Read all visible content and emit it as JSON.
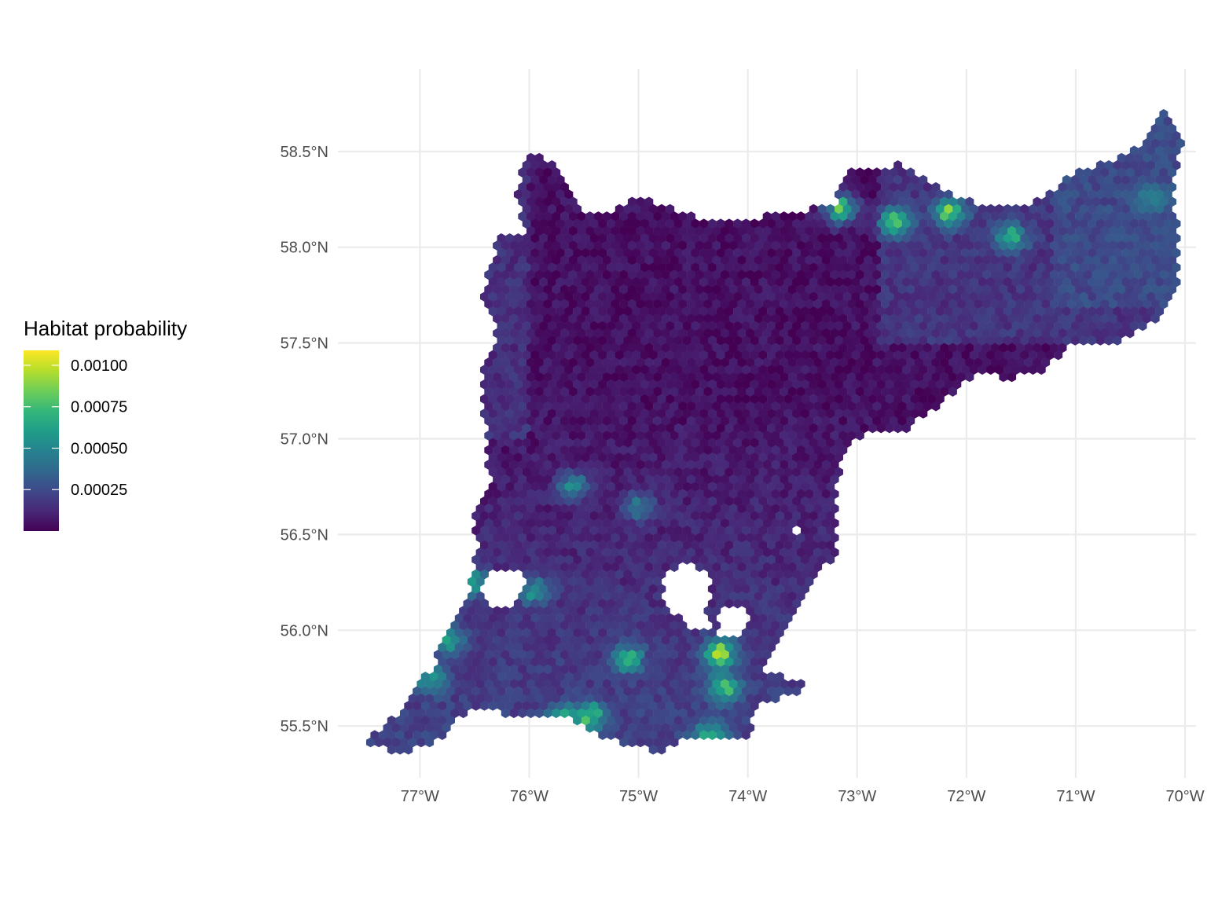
{
  "chart_data": {
    "type": "heatmap",
    "geometry": "hexbin-map",
    "title": "",
    "xlabel": "",
    "ylabel": "",
    "xlim": [
      -77.75,
      -69.9
    ],
    "ylim": [
      55.23,
      58.93
    ],
    "x_ticks": [
      {
        "value": -77,
        "label": "77°W"
      },
      {
        "value": -76,
        "label": "76°W"
      },
      {
        "value": -75,
        "label": "75°W"
      },
      {
        "value": -74,
        "label": "74°W"
      },
      {
        "value": -73,
        "label": "73°W"
      },
      {
        "value": -72,
        "label": "72°W"
      },
      {
        "value": -71,
        "label": "71°W"
      },
      {
        "value": -70,
        "label": "70°W"
      }
    ],
    "y_ticks": [
      {
        "value": 55.5,
        "label": "55.5°N"
      },
      {
        "value": 56.0,
        "label": "56.0°N"
      },
      {
        "value": 56.5,
        "label": "56.5°N"
      },
      {
        "value": 57.0,
        "label": "57.0°N"
      },
      {
        "value": 57.5,
        "label": "57.5°N"
      },
      {
        "value": 58.0,
        "label": "58.0°N"
      },
      {
        "value": 58.5,
        "label": "58.5°N"
      }
    ],
    "grid": true,
    "legend": {
      "title": "Habitat probability",
      "placement": "left",
      "min": 0.0,
      "max": 0.00109,
      "breaks": [
        {
          "value": 0.001,
          "label": "0.00100"
        },
        {
          "value": 0.00075,
          "label": "0.00075"
        },
        {
          "value": 0.0005,
          "label": "0.00050"
        },
        {
          "value": 0.00025,
          "label": "0.00025"
        }
      ],
      "palette": "viridis",
      "colors": [
        "#440154",
        "#482878",
        "#3e4989",
        "#31688e",
        "#26828e",
        "#1f9e89",
        "#35b779",
        "#6ece58",
        "#b5de2b",
        "#fde725"
      ]
    },
    "region_outline": [
      [
        -77.52,
        55.41
      ],
      [
        -77.3,
        55.5
      ],
      [
        -77.1,
        55.65
      ],
      [
        -76.9,
        55.8
      ],
      [
        -76.72,
        56.0
      ],
      [
        -76.55,
        56.2
      ],
      [
        -76.48,
        56.45
      ],
      [
        -76.52,
        56.62
      ],
      [
        -76.35,
        56.75
      ],
      [
        -76.4,
        57.0
      ],
      [
        -76.45,
        57.35
      ],
      [
        -76.3,
        57.55
      ],
      [
        -76.42,
        57.75
      ],
      [
        -76.3,
        58.05
      ],
      [
        -76.0,
        58.05
      ],
      [
        -76.15,
        58.3
      ],
      [
        -75.98,
        58.48
      ],
      [
        -75.75,
        58.45
      ],
      [
        -75.55,
        58.2
      ],
      [
        -75.25,
        58.18
      ],
      [
        -75.0,
        58.27
      ],
      [
        -74.7,
        58.2
      ],
      [
        -74.3,
        58.13
      ],
      [
        -73.6,
        58.18
      ],
      [
        -73.2,
        58.22
      ],
      [
        -73.1,
        58.4
      ],
      [
        -72.6,
        58.43
      ],
      [
        -72.2,
        58.3
      ],
      [
        -71.9,
        58.22
      ],
      [
        -71.6,
        58.22
      ],
      [
        -71.3,
        58.25
      ],
      [
        -71.0,
        58.4
      ],
      [
        -70.7,
        58.45
      ],
      [
        -70.4,
        58.55
      ],
      [
        -70.22,
        58.74
      ],
      [
        -70.02,
        58.56
      ],
      [
        -70.1,
        58.3
      ],
      [
        -70.05,
        58.05
      ],
      [
        -70.08,
        57.8
      ],
      [
        -70.3,
        57.6
      ],
      [
        -70.65,
        57.5
      ],
      [
        -71.0,
        57.5
      ],
      [
        -71.3,
        57.35
      ],
      [
        -71.6,
        57.32
      ],
      [
        -71.95,
        57.33
      ],
      [
        -72.3,
        57.15
      ],
      [
        -72.55,
        57.05
      ],
      [
        -72.9,
        57.03
      ],
      [
        -73.1,
        56.95
      ],
      [
        -73.2,
        56.7
      ],
      [
        -73.2,
        56.4
      ],
      [
        -73.45,
        56.2
      ],
      [
        -73.65,
        56.0
      ],
      [
        -73.85,
        55.8
      ],
      [
        -73.42,
        55.7
      ],
      [
        -73.9,
        55.6
      ],
      [
        -74.0,
        55.42
      ],
      [
        -74.5,
        55.45
      ],
      [
        -74.85,
        55.36
      ],
      [
        -75.3,
        55.44
      ],
      [
        -75.7,
        55.55
      ],
      [
        -76.1,
        55.55
      ],
      [
        -76.5,
        55.6
      ],
      [
        -76.9,
        55.4
      ],
      [
        -77.2,
        55.36
      ],
      [
        -77.52,
        55.41
      ]
    ],
    "holes": [
      {
        "lon": -74.55,
        "lat": 56.2,
        "rx": 0.22,
        "ry": 0.14
      },
      {
        "lon": -74.15,
        "lat": 56.05,
        "rx": 0.14,
        "ry": 0.09
      },
      {
        "lon": -76.25,
        "lat": 56.23,
        "rx": 0.2,
        "ry": 0.1
      },
      {
        "lon": -74.45,
        "lat": 56.05,
        "rx": 0.1,
        "ry": 0.05
      },
      {
        "lon": -73.55,
        "lat": 56.52,
        "rx": 0.06,
        "ry": 0.03
      }
    ],
    "high_value_zones": [
      {
        "lon": -76.55,
        "lat": 56.25,
        "value": 0.00085
      },
      {
        "lon": -76.75,
        "lat": 55.95,
        "value": 0.0008
      },
      {
        "lon": -76.9,
        "lat": 55.75,
        "value": 0.0007
      },
      {
        "lon": -75.95,
        "lat": 56.2,
        "value": 0.00065
      },
      {
        "lon": -75.1,
        "lat": 55.85,
        "value": 0.0008
      },
      {
        "lon": -75.45,
        "lat": 55.55,
        "value": 0.0009
      },
      {
        "lon": -75.7,
        "lat": 55.52,
        "value": 0.00095
      },
      {
        "lon": -74.25,
        "lat": 55.88,
        "value": 0.00105
      },
      {
        "lon": -74.22,
        "lat": 55.7,
        "value": 0.00095
      },
      {
        "lon": -74.35,
        "lat": 55.45,
        "value": 0.00075
      },
      {
        "lon": -72.15,
        "lat": 58.18,
        "value": 0.001
      },
      {
        "lon": -72.65,
        "lat": 58.13,
        "value": 0.00095
      },
      {
        "lon": -71.6,
        "lat": 58.05,
        "value": 0.0008
      },
      {
        "lon": -73.15,
        "lat": 58.2,
        "value": 0.0009
      },
      {
        "lon": -70.3,
        "lat": 58.25,
        "value": 0.00055
      },
      {
        "lon": -75.0,
        "lat": 56.65,
        "value": 0.00055
      },
      {
        "lon": -75.6,
        "lat": 56.75,
        "value": 0.00065
      }
    ]
  }
}
